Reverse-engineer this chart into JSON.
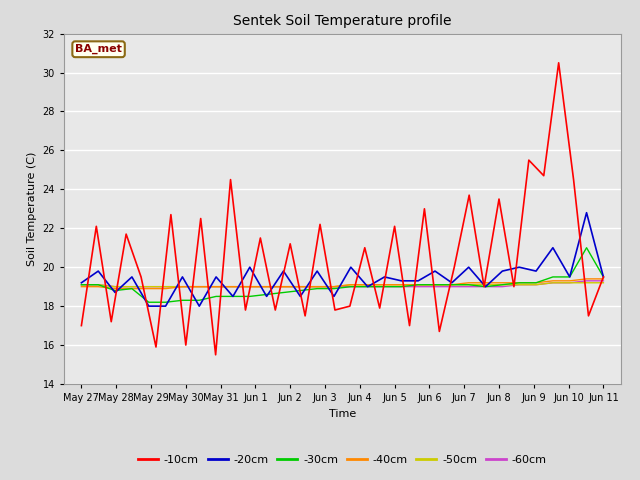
{
  "title": "Sentek Soil Temperature profile",
  "xlabel": "Time",
  "ylabel": "Soil Temperature (C)",
  "ylim": [
    14,
    32
  ],
  "yticks": [
    14,
    16,
    18,
    20,
    22,
    24,
    26,
    28,
    30,
    32
  ],
  "background_color": "#dcdcdc",
  "plot_bg_color": "#e8e8e8",
  "grid_color": "white",
  "annotation_text": "BA_met",
  "annotation_bg": "#fffff0",
  "annotation_border": "#8B6914",
  "legend_entries": [
    "-10cm",
    "-20cm",
    "-30cm",
    "-40cm",
    "-50cm",
    "-60cm"
  ],
  "legend_colors": [
    "#ff0000",
    "#0000cc",
    "#00cc00",
    "#ff8800",
    "#cccc00",
    "#cc44cc"
  ],
  "line_colors": [
    "#ff0000",
    "#0000cc",
    "#00cc00",
    "#ff8800",
    "#cccc00",
    "#cc44cc"
  ],
  "x_tick_labels": [
    "May 27",
    "May 28",
    "May 29",
    "May 30",
    "May 31",
    "Jun 1",
    "Jun 2",
    "Jun 3",
    "Jun 4",
    "Jun 5",
    "Jun 6",
    "Jun 7",
    "Jun 8",
    "Jun 9",
    "Jun 10",
    "Jun 11"
  ],
  "red_data": [
    17.0,
    22.1,
    17.2,
    21.7,
    19.5,
    15.9,
    22.7,
    16.0,
    22.5,
    15.5,
    24.5,
    17.8,
    21.5,
    17.8,
    21.2,
    17.5,
    22.2,
    17.8,
    18.0,
    21.0,
    17.9,
    22.1,
    17.0,
    23.0,
    16.7,
    20.0,
    23.7,
    19.0,
    23.5,
    19.0,
    25.5,
    24.7,
    30.5,
    24.5,
    17.5,
    19.5
  ],
  "blue_data": [
    19.2,
    19.8,
    18.7,
    19.5,
    18.0,
    18.0,
    19.5,
    18.0,
    19.5,
    18.5,
    20.0,
    18.5,
    19.8,
    18.5,
    19.8,
    18.5,
    20.0,
    19.0,
    19.5,
    19.3,
    19.3,
    19.8,
    19.2,
    20.0,
    19.0,
    19.8,
    20.0,
    19.8,
    21.0,
    19.5,
    22.8,
    19.5
  ],
  "green_data": [
    19.1,
    19.1,
    18.8,
    18.9,
    18.2,
    18.2,
    18.3,
    18.3,
    18.5,
    18.5,
    18.5,
    18.6,
    18.7,
    18.8,
    18.9,
    18.9,
    19.0,
    19.0,
    19.0,
    19.0,
    19.1,
    19.1,
    19.1,
    19.1,
    19.0,
    19.1,
    19.2,
    19.2,
    19.5,
    19.5,
    21.0,
    19.5
  ],
  "orange_data": [
    19.0,
    19.0,
    18.9,
    18.9,
    18.9,
    18.9,
    19.0,
    19.0,
    19.0,
    19.0,
    19.0,
    19.0,
    19.0,
    19.0,
    19.0,
    19.0,
    19.1,
    19.1,
    19.1,
    19.1,
    19.1,
    19.1,
    19.1,
    19.2,
    19.2,
    19.2,
    19.2,
    19.2,
    19.3,
    19.3,
    19.4,
    19.4
  ],
  "yellow_data": [
    19.1,
    19.1,
    19.0,
    19.0,
    19.0,
    19.0,
    19.0,
    19.0,
    19.0,
    19.0,
    19.0,
    19.0,
    19.0,
    19.0,
    19.0,
    19.0,
    19.1,
    19.1,
    19.1,
    19.1,
    19.1,
    19.1,
    19.1,
    19.1,
    19.1,
    19.1,
    19.1,
    19.1,
    19.2,
    19.2,
    19.2,
    19.2
  ],
  "purple_data": [
    19.1,
    19.1,
    19.0,
    19.0,
    19.0,
    19.0,
    19.0,
    19.0,
    19.0,
    19.0,
    19.0,
    19.0,
    19.0,
    19.0,
    19.0,
    19.0,
    19.0,
    19.0,
    19.0,
    19.0,
    19.0,
    19.0,
    19.0,
    19.0,
    19.0,
    19.0,
    19.1,
    19.1,
    19.2,
    19.2,
    19.3,
    19.3
  ]
}
